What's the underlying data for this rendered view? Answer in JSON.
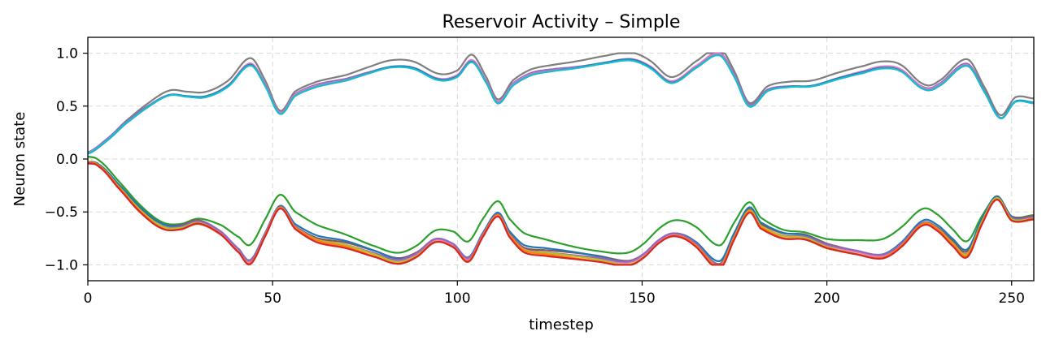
{
  "chart_data": {
    "type": "line",
    "title": "Reservoir Activity – Simple",
    "xlabel": "timestep",
    "ylabel": "Neuron state",
    "xlim": [
      0,
      256
    ],
    "ylim": [
      -1.15,
      1.15
    ],
    "xticks": [
      0,
      50,
      100,
      150,
      200,
      250
    ],
    "yticks": [
      -1.0,
      -0.5,
      0.0,
      0.5,
      1.0
    ],
    "xtick_labels": [
      "0",
      "50",
      "100",
      "150",
      "200",
      "250"
    ],
    "ytick_labels": [
      "−1.0",
      "−0.5",
      "0.0",
      "0.5",
      "1.0"
    ],
    "grid": true,
    "legend": "none",
    "base_upper": {
      "x": [
        0,
        5,
        10,
        16,
        22,
        27,
        32,
        38,
        44,
        48,
        52,
        56,
        62,
        70,
        76,
        82,
        88,
        95,
        100,
        104,
        108,
        111,
        115,
        120,
        126,
        132,
        140,
        147,
        152,
        158,
        165,
        171,
        175,
        179,
        184,
        190,
        196,
        203,
        210,
        215,
        220,
        226,
        230,
        238,
        243,
        247,
        251,
        256
      ],
      "y": [
        0.05,
        0.17,
        0.33,
        0.49,
        0.61,
        0.6,
        0.6,
        0.7,
        0.9,
        0.7,
        0.43,
        0.6,
        0.69,
        0.75,
        0.82,
        0.88,
        0.87,
        0.76,
        0.79,
        0.93,
        0.72,
        0.53,
        0.7,
        0.8,
        0.84,
        0.87,
        0.92,
        0.95,
        0.88,
        0.73,
        0.88,
        0.99,
        0.78,
        0.5,
        0.65,
        0.69,
        0.7,
        0.77,
        0.83,
        0.87,
        0.84,
        0.67,
        0.69,
        0.89,
        0.62,
        0.39,
        0.55,
        0.54
      ]
    },
    "base_lower": {
      "x": [
        0,
        3,
        8,
        14,
        20,
        25,
        30,
        36,
        41,
        44,
        48,
        52,
        56,
        62,
        70,
        78,
        84,
        89,
        94,
        99,
        103,
        107,
        111,
        114,
        118,
        124,
        130,
        138,
        146,
        150,
        155,
        159,
        164,
        171,
        175,
        179,
        182,
        188,
        194,
        200,
        208,
        215,
        220,
        226,
        230,
        234,
        238,
        242,
        246,
        250,
        256
      ],
      "y": [
        -0.04,
        -0.07,
        -0.25,
        -0.47,
        -0.62,
        -0.63,
        -0.58,
        -0.68,
        -0.85,
        -0.95,
        -0.7,
        -0.45,
        -0.63,
        -0.75,
        -0.8,
        -0.88,
        -0.94,
        -0.88,
        -0.75,
        -0.8,
        -0.93,
        -0.7,
        -0.52,
        -0.7,
        -0.84,
        -0.87,
        -0.89,
        -0.92,
        -0.96,
        -0.9,
        -0.75,
        -0.7,
        -0.78,
        -0.99,
        -0.72,
        -0.48,
        -0.62,
        -0.71,
        -0.72,
        -0.8,
        -0.86,
        -0.9,
        -0.8,
        -0.6,
        -0.65,
        -0.78,
        -0.88,
        -0.58,
        -0.36,
        -0.55,
        -0.54
      ]
    },
    "series": [
      {
        "group": "upper",
        "color": "#7f7f7f",
        "amp": 1.06,
        "offset": 0.0
      },
      {
        "group": "upper",
        "color": "#9467bd",
        "amp": 1.0,
        "offset": 0.015
      },
      {
        "group": "upper",
        "color": "#e377c2",
        "amp": 1.0,
        "offset": 0.008
      },
      {
        "group": "upper",
        "color": "#1f77b4",
        "amp": 0.99,
        "offset": 0.0
      },
      {
        "group": "upper",
        "color": "#17becf",
        "amp": 0.985,
        "offset": -0.005
      },
      {
        "group": "lower",
        "color": "#2ca02c",
        "amp": 0.88,
        "offset": -0.06
      },
      {
        "group": "lower",
        "color": "#8c564b",
        "amp": 1.0,
        "offset": 0.01
      },
      {
        "group": "lower",
        "color": "#1f77b4",
        "amp": 0.99,
        "offset": 0.02
      },
      {
        "group": "lower",
        "color": "#e377c2",
        "amp": 1.02,
        "offset": 0.0
      },
      {
        "group": "lower",
        "color": "#9467bd",
        "amp": 1.01,
        "offset": 0.005
      },
      {
        "group": "lower",
        "color": "#bcbd22",
        "amp": 1.03,
        "offset": -0.01
      },
      {
        "group": "lower",
        "color": "#ff7f0e",
        "amp": 1.04,
        "offset": -0.012
      },
      {
        "group": "lower",
        "color": "#d62728",
        "amp": 1.05,
        "offset": -0.005
      }
    ]
  }
}
